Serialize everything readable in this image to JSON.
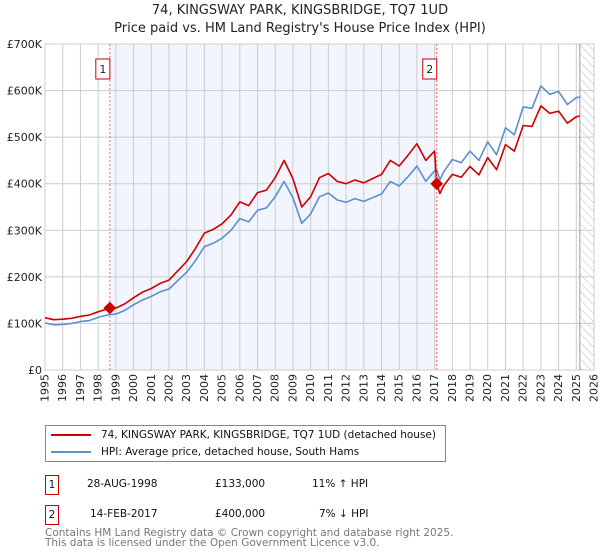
{
  "chart_data": {
    "type": "line",
    "title": "74, KINGSWAY PARK, KINGSBRIDGE, TQ7 1UD",
    "subtitle": "Price paid vs. HM Land Registry's House Price Index (HPI)",
    "xlabel": "",
    "ylabel": "",
    "xlim": [
      1995,
      2026
    ],
    "ylim": [
      0,
      700000
    ],
    "x_ticks": [
      "1995",
      "1996",
      "1997",
      "1998",
      "1999",
      "2000",
      "2001",
      "2002",
      "2003",
      "2004",
      "2005",
      "2006",
      "2007",
      "2008",
      "2009",
      "2010",
      "2011",
      "2012",
      "2013",
      "2014",
      "2015",
      "2016",
      "2017",
      "2018",
      "2019",
      "2020",
      "2021",
      "2022",
      "2023",
      "2024",
      "2025",
      "2026"
    ],
    "y_ticks": [
      {
        "v": 0,
        "label": "£0"
      },
      {
        "v": 100000,
        "label": "£100K"
      },
      {
        "v": 200000,
        "label": "£200K"
      },
      {
        "v": 300000,
        "label": "£300K"
      },
      {
        "v": 400000,
        "label": "£400K"
      },
      {
        "v": 500000,
        "label": "£500K"
      },
      {
        "v": 600000,
        "label": "£600K"
      },
      {
        "v": 700000,
        "label": "£700K"
      }
    ],
    "grid": true,
    "shaded_range": [
      1998.66,
      2017.12
    ],
    "forecast_hatch_from": 2025.2,
    "x": [
      1995,
      1995.5,
      1996,
      1996.5,
      1997,
      1997.5,
      1998,
      1998.5,
      1999,
      1999.5,
      2000,
      2000.5,
      2001,
      2001.5,
      2002,
      2002.5,
      2003,
      2003.5,
      2004,
      2004.5,
      2005,
      2005.5,
      2006,
      2006.5,
      2007,
      2007.5,
      2008,
      2008.5,
      2009,
      2009.5,
      2010,
      2010.5,
      2011,
      2011.5,
      2012,
      2012.5,
      2013,
      2013.5,
      2014,
      2014.5,
      2015,
      2015.5,
      2016,
      2016.5,
      2017,
      2017.12,
      2017.3,
      2017.5,
      2018,
      2018.5,
      2019,
      2019.5,
      2020,
      2020.5,
      2021,
      2021.5,
      2022,
      2022.5,
      2023,
      2023.5,
      2024,
      2024.5,
      2025,
      2025.2
    ],
    "series": [
      {
        "name": "74, KINGSWAY PARK, KINGSBRIDGE, TQ7 1UD (detached house)",
        "color": "#cc0000",
        "values": [
          112,
          108,
          109,
          111,
          115,
          118,
          125,
          131,
          133,
          142,
          155,
          167,
          175,
          186,
          193,
          213,
          233,
          261,
          294,
          302,
          314,
          333,
          361,
          353,
          381,
          386,
          413,
          450,
          411,
          350,
          372,
          413,
          422,
          405,
          400,
          408,
          402,
          411,
          420,
          450,
          438,
          461,
          486,
          450,
          470,
          400,
          379,
          395,
          420,
          414,
          437,
          419,
          456,
          430,
          484,
          470,
          525,
          523,
          567,
          551,
          556,
          530,
          544,
          545
        ]
      },
      {
        "name": "HPI: Average price, detached house, South Hams",
        "color": "#5b8fd0",
        "values": [
          101,
          97,
          98,
          100,
          104,
          106,
          113,
          118,
          120,
          128,
          140,
          150,
          158,
          168,
          174,
          192,
          210,
          235,
          265,
          272,
          283,
          300,
          325,
          318,
          343,
          348,
          372,
          405,
          370,
          315,
          335,
          372,
          380,
          365,
          360,
          368,
          362,
          370,
          378,
          405,
          395,
          415,
          438,
          405,
          428,
          430,
          408,
          425,
          452,
          445,
          470,
          450,
          490,
          462,
          520,
          505,
          565,
          562,
          610,
          592,
          598,
          570,
          585,
          586
        ]
      }
    ],
    "value_units": "thousands GBP",
    "sales": [
      {
        "id": "1",
        "x": 1998.66,
        "value": 133,
        "date": "28-AUG-1998",
        "price": "£133,000",
        "hpi": "11% ↑ HPI"
      },
      {
        "id": "2",
        "x": 2017.12,
        "value": 400,
        "date": "14-FEB-2017",
        "price": "£400,000",
        "hpi": "7% ↓ HPI"
      }
    ]
  },
  "footer": {
    "line1": "Contains HM Land Registry data © Crown copyright and database right 2025.",
    "line2": "This data is licensed under the Open Government Licence v3.0."
  }
}
